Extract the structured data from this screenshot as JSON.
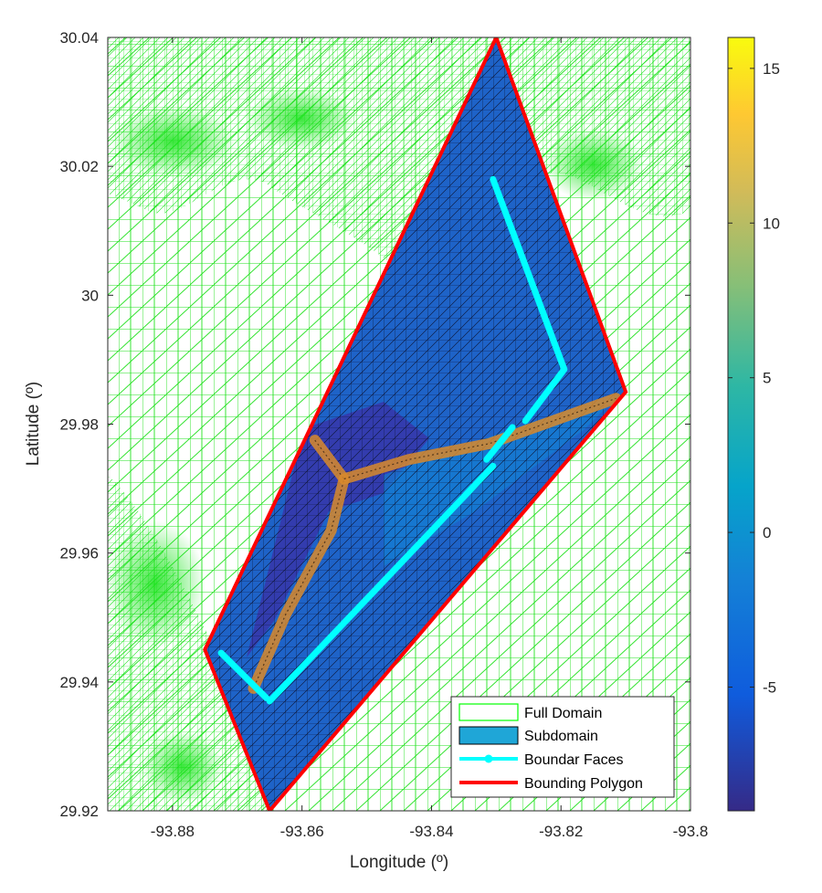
{
  "chart_data": {
    "type": "mesh-map",
    "xlabel": "Longitude (º)",
    "ylabel": "Latitude (º)",
    "xlim": [
      -93.89,
      -93.8
    ],
    "ylim": [
      29.92,
      30.04
    ],
    "xticks": [
      -93.88,
      -93.86,
      -93.84,
      -93.82,
      -93.8
    ],
    "yticks": [
      29.92,
      29.94,
      29.96,
      29.98,
      30.0,
      30.02,
      30.04
    ],
    "xtick_labels": [
      "-93.88",
      "-93.86",
      "-93.84",
      "-93.82",
      "-93.8"
    ],
    "ytick_labels": [
      "29.92",
      "29.94",
      "29.96",
      "29.98",
      "30",
      "30.02",
      "30.04"
    ],
    "colorbar": {
      "range": [
        -9,
        16
      ],
      "ticks": [
        -5,
        0,
        5,
        10,
        15
      ],
      "tick_labels": [
        "-5",
        "0",
        "5",
        "10",
        "15"
      ],
      "colormap": "parula"
    },
    "legend_position": "bottom-right",
    "legend": [
      {
        "label": "Full Domain",
        "color": "#00ff00"
      },
      {
        "label": "Subdomain",
        "color": "#1fa6d7"
      },
      {
        "label": "Boundar Faces",
        "color": "#00ffff"
      },
      {
        "label": "Bounding Polygon",
        "color": "#ff0000"
      }
    ],
    "bounding_polygon": [
      [
        -93.83,
        30.04
      ],
      [
        -93.81,
        29.985
      ],
      [
        -93.865,
        29.92
      ],
      [
        -93.875,
        29.945
      ],
      [
        -93.83,
        30.04
      ]
    ],
    "boundary_faces": [
      [
        [
          -93.8305,
          30.018
        ],
        [
          -93.8195,
          29.9885
        ],
        [
          -93.8255,
          29.9805
        ]
      ],
      [
        [
          -93.8275,
          29.9795
        ],
        [
          -93.8315,
          29.9745
        ]
      ],
      [
        [
          -93.8305,
          29.9735
        ],
        [
          -93.865,
          29.937
        ]
      ],
      [
        [
          -93.8725,
          29.9445
        ],
        [
          -93.8655,
          29.9375
        ]
      ]
    ],
    "channel_centerline": [
      [
        [
          -93.858,
          29.9775
        ],
        [
          -93.8535,
          29.9715
        ],
        [
          -93.8555,
          29.9635
        ],
        [
          -93.8625,
          29.9505
        ],
        [
          -93.8675,
          29.939
        ]
      ],
      [
        [
          -93.8535,
          29.9715
        ],
        [
          -93.8435,
          29.9745
        ],
        [
          -93.831,
          29.977
        ],
        [
          -93.8115,
          29.984
        ]
      ]
    ]
  }
}
